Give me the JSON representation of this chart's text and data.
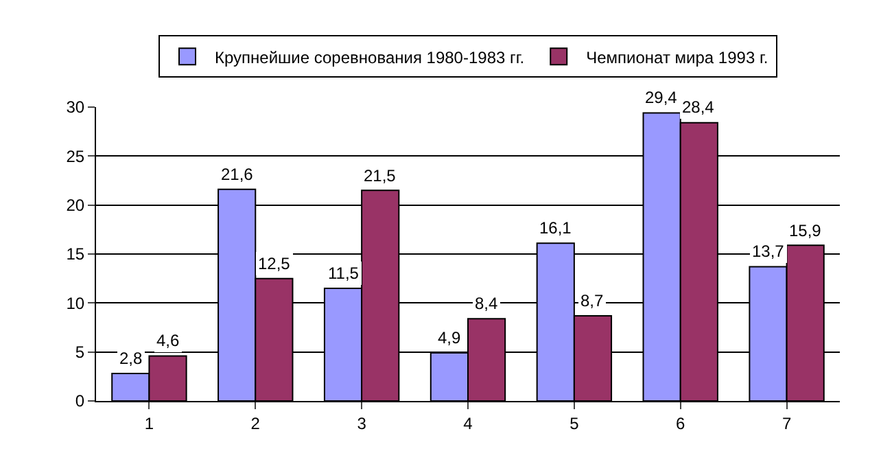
{
  "chart_data": {
    "type": "bar",
    "categories": [
      "1",
      "2",
      "3",
      "4",
      "5",
      "6",
      "7"
    ],
    "series": [
      {
        "name": "Крупнейшие соревнования 1980-1983 гг.",
        "color": "#9999ff",
        "values": [
          2.8,
          21.6,
          11.5,
          4.9,
          16.1,
          29.4,
          13.7
        ],
        "value_labels": [
          "2,8",
          "21,6",
          "11,5",
          "4,9",
          "16,1",
          "29,4",
          "13,7"
        ]
      },
      {
        "name": "Чемпионат мира 1993 г.",
        "color": "#993366",
        "values": [
          4.6,
          12.5,
          21.5,
          8.4,
          8.7,
          28.4,
          15.9
        ],
        "value_labels": [
          "4,6",
          "12,5",
          "21,5",
          "8,4",
          "8,7",
          "28,4",
          "15,9"
        ]
      }
    ],
    "ylim": [
      0,
      30
    ],
    "yticks": [
      0,
      5,
      10,
      15,
      20,
      25,
      30
    ],
    "grid": "y",
    "legend": "top"
  }
}
